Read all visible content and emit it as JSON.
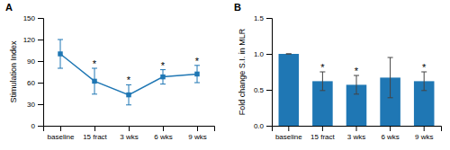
{
  "chart_data": [
    {
      "type": "line",
      "title": "A",
      "ylabel": "Stimulation Index",
      "categories": [
        "baseline",
        "15 fract",
        "3 wks",
        "6 wks",
        "9 wks"
      ],
      "values": [
        100,
        62,
        43,
        68,
        72
      ],
      "errors": [
        20,
        18,
        14,
        10,
        12
      ],
      "marker": "square",
      "ylim": [
        0,
        150
      ],
      "yticks": [
        0,
        30,
        60,
        90,
        120,
        150
      ],
      "annotations": [
        {
          "category": "15 fract",
          "text": "*"
        },
        {
          "category": "3 wks",
          "text": "*"
        },
        {
          "category": "6 wks",
          "text": "*"
        },
        {
          "category": "9 wks",
          "text": "*"
        }
      ]
    },
    {
      "type": "bar",
      "title": "B",
      "ylabel": "Fold change S.I. in MLR",
      "categories": [
        "baseline",
        "15 fract",
        "3 wks",
        "6 wks",
        "9 wks"
      ],
      "values": [
        1.0,
        0.62,
        0.57,
        0.67,
        0.62
      ],
      "errors": [
        0.0,
        0.13,
        0.13,
        0.28,
        0.13
      ],
      "ylim": [
        0.0,
        1.5
      ],
      "yticks": [
        {
          "value": 0.0,
          "label": "0.0"
        },
        0.5,
        {
          "value": 1.0,
          "label": "1.0"
        },
        1.5
      ],
      "annotations": [
        {
          "category": "15 fract",
          "text": "*"
        },
        {
          "category": "3 wks",
          "text": "*"
        },
        {
          "category": "9 wks",
          "text": "*"
        }
      ]
    }
  ]
}
